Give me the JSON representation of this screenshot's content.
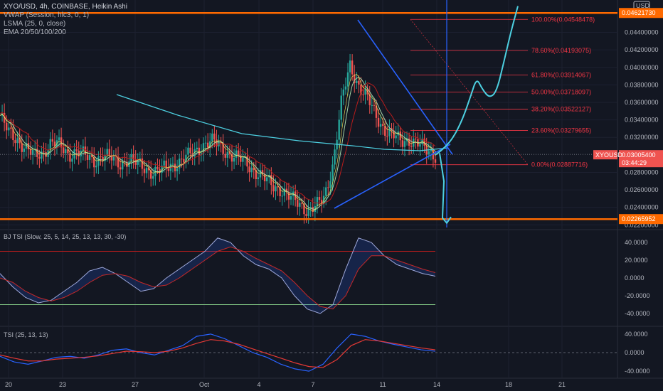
{
  "legend": {
    "title": "XYO/USD, 4h, COINBASE, Heikin Ashi",
    "vwap": "VWAP (Session, hlc3, 0, 1)",
    "lsma": "LSMA (25, 0, close)",
    "ema": "EMA 20/50/100/200"
  },
  "currency_label": "USD",
  "symbol_tag": "XYOUSD",
  "price_tag": "0.03005400",
  "countdown": "03:44:29",
  "resistance_tag": "0.04621730",
  "support_tag": "0.02265952",
  "colors": {
    "background": "#131722",
    "up": "#26a69a",
    "down": "#ef5350",
    "orange": "#ff6a00",
    "blue": "#2962ff",
    "cyan": "#4dd0e1",
    "red_line": "#b71c1c",
    "fib": "#f23645"
  },
  "chart_data": {
    "type": "candlestick",
    "price_axis": {
      "ylim": [
        0.0217,
        0.0477
      ],
      "ticks": [
        "0.04400000",
        "0.04200000",
        "0.04000000",
        "0.03800000",
        "0.03600000",
        "0.03400000",
        "0.03200000",
        "0.02800000",
        "0.02600000",
        "0.02400000",
        "0.02200000"
      ],
      "tick_values": [
        0.044,
        0.042,
        0.04,
        0.038,
        0.036,
        0.034,
        0.032,
        0.028,
        0.026,
        0.024,
        0.022
      ]
    },
    "x_axis": {
      "labels": [
        "20",
        "23",
        "27",
        "Oct",
        "4",
        "7",
        "11",
        "14",
        "18",
        "21"
      ]
    },
    "horizontal_levels": {
      "resistance": 0.0462173,
      "support": 0.02265952,
      "last": 0.030054
    },
    "fibonacci": [
      {
        "label": "100.00%(0.04548478)",
        "value": 0.04548478
      },
      {
        "label": "78.60%(0.04193075)",
        "value": 0.04193075
      },
      {
        "label": "61.80%(0.03914067)",
        "value": 0.03914067
      },
      {
        "label": "50.00%(0.03718097)",
        "value": 0.03718097
      },
      {
        "label": "38.20%(0.03522127)",
        "value": 0.03522127
      },
      {
        "label": "23.60%(0.03279655)",
        "value": 0.03279655
      },
      {
        "label": "0.00%(0.02887716)",
        "value": 0.02887716
      }
    ],
    "price_path": [
      0.0345,
      0.0325,
      0.0318,
      0.0308,
      0.0298,
      0.0302,
      0.0315,
      0.031,
      0.03,
      0.0305,
      0.0298,
      0.0293,
      0.03,
      0.0296,
      0.029,
      0.0295,
      0.029,
      0.0285,
      0.028,
      0.0283,
      0.0288,
      0.0292,
      0.0298,
      0.0305,
      0.0313,
      0.0315,
      0.0308,
      0.03,
      0.0295,
      0.029,
      0.028,
      0.0272,
      0.0265,
      0.026,
      0.025,
      0.0245,
      0.0237,
      0.024,
      0.0252,
      0.029,
      0.036,
      0.0402,
      0.038,
      0.0365,
      0.0345,
      0.033,
      0.0322,
      0.0315,
      0.0318,
      0.0312,
      0.0305,
      0.03
    ],
    "projection": [
      0.03,
      0.0306,
      0.0318,
      0.034,
      0.0368,
      0.0388,
      0.0375,
      0.0365,
      0.0372,
      0.0405,
      0.044,
      0.047
    ],
    "drop_path": [
      0.0302,
      0.027,
      0.0228,
      0.0222,
      0.0229
    ],
    "tsi_bj": {
      "title": "BJ TSI (Slow, 25, 5, 14, 25, 13, 13, 30, -30)",
      "ylim": [
        -52,
        52
      ],
      "ticks": [
        "40.0000",
        "20.0000",
        "0.0000",
        "-20.0000",
        "-40.0000"
      ],
      "tick_values": [
        40,
        20,
        0,
        -20,
        -40
      ],
      "upper": 30,
      "lower": -30,
      "fast": [
        5,
        -10,
        -22,
        -28,
        -25,
        -15,
        -5,
        8,
        12,
        5,
        -5,
        -15,
        -12,
        0,
        10,
        20,
        30,
        45,
        40,
        25,
        15,
        10,
        0,
        -20,
        -35,
        -40,
        -30,
        10,
        45,
        40,
        25,
        15,
        10,
        5,
        2
      ],
      "slow": [
        0,
        -5,
        -15,
        -22,
        -26,
        -22,
        -15,
        -5,
        3,
        5,
        2,
        -5,
        -10,
        -8,
        0,
        10,
        20,
        30,
        35,
        30,
        22,
        15,
        8,
        -5,
        -20,
        -32,
        -35,
        -20,
        10,
        25,
        25,
        20,
        15,
        10,
        6
      ]
    },
    "tsi": {
      "title": "TSI (25, 13, 13)",
      "ylim": [
        -52,
        52
      ],
      "ticks": [
        "40.0000",
        "0.0000",
        "-40.0000"
      ],
      "tick_values": [
        40,
        0,
        -40
      ],
      "blue": [
        -8,
        -20,
        -25,
        -18,
        -10,
        -8,
        -12,
        -5,
        5,
        8,
        0,
        -5,
        5,
        15,
        35,
        40,
        30,
        15,
        0,
        -10,
        -25,
        -35,
        -40,
        -25,
        10,
        40,
        35,
        25,
        18,
        12,
        6,
        3
      ],
      "red": [
        -5,
        -12,
        -18,
        -18,
        -14,
        -12,
        -10,
        -7,
        -2,
        3,
        2,
        0,
        3,
        10,
        20,
        28,
        25,
        18,
        8,
        -2,
        -12,
        -22,
        -30,
        -32,
        -15,
        15,
        28,
        25,
        20,
        15,
        10,
        6
      ]
    }
  }
}
